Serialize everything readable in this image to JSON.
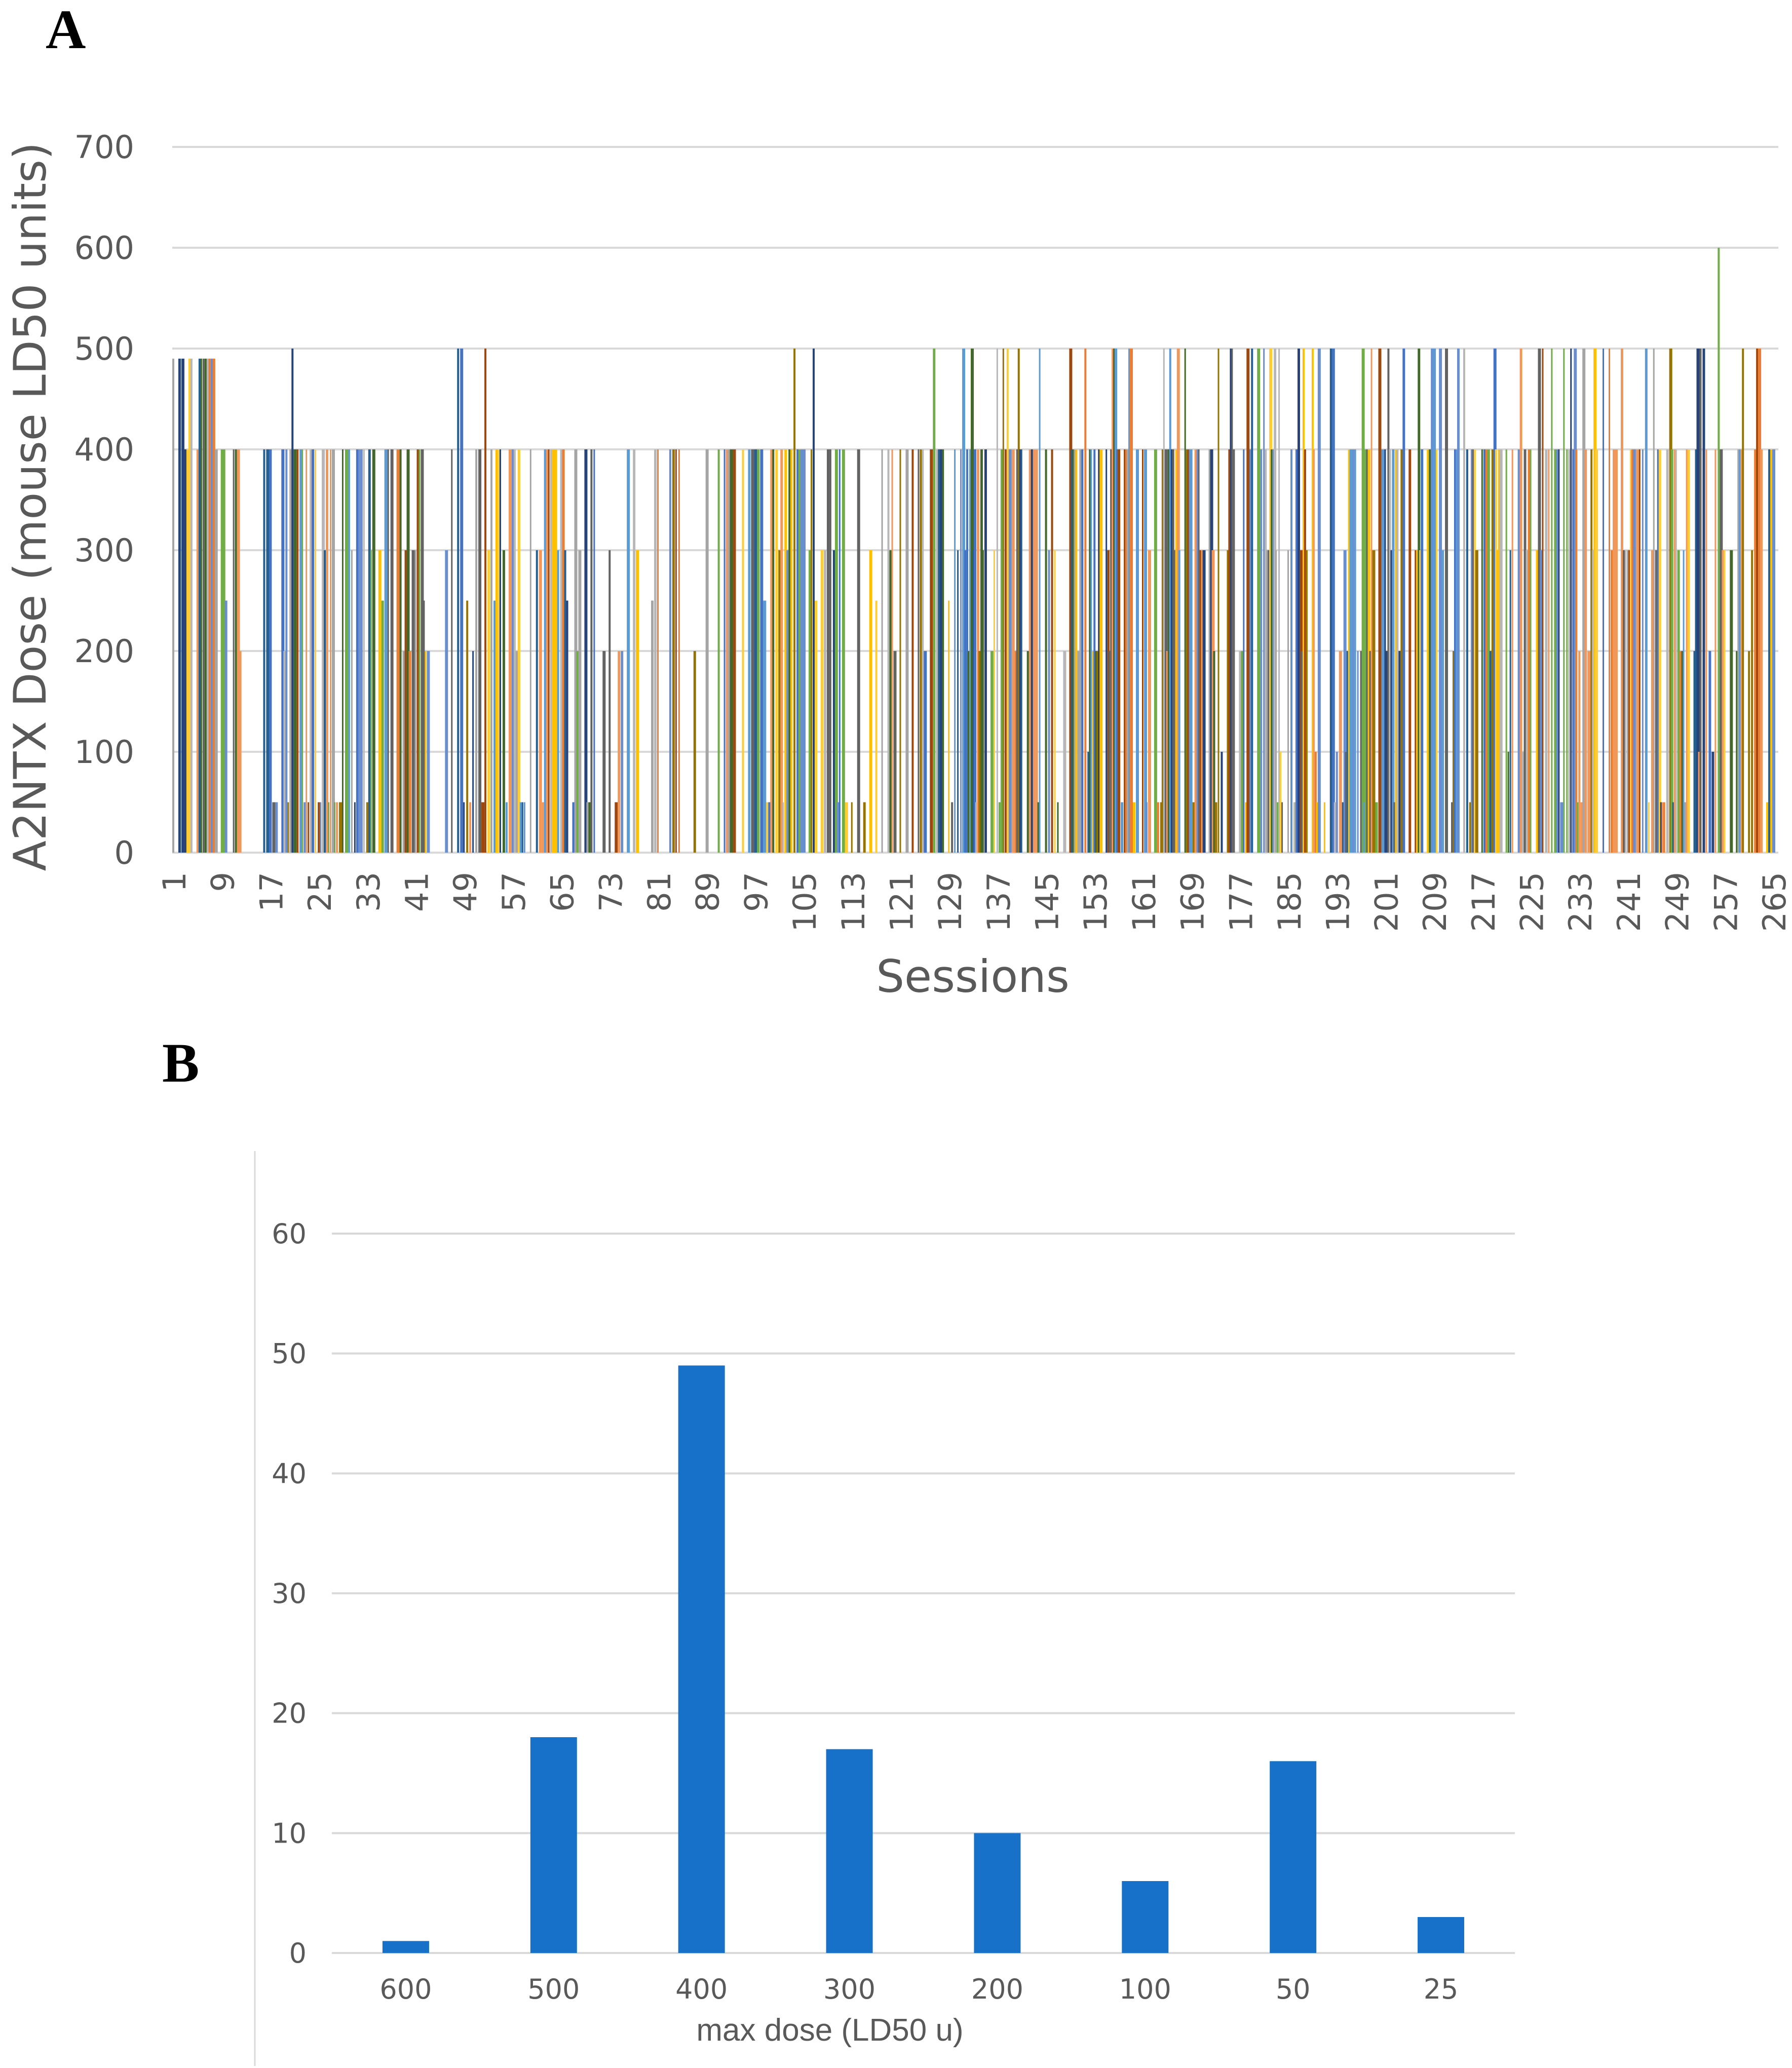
{
  "figure": {
    "panels": [
      "A",
      "B"
    ]
  },
  "chart_data": [
    {
      "panel": "A",
      "type": "bar",
      "title": "",
      "xlabel": "Sessions",
      "ylabel": "A2NTX Dose (mouse LD50 units)",
      "ylim": [
        0,
        700
      ],
      "yticks": [
        0,
        100,
        200,
        300,
        400,
        500,
        600,
        700
      ],
      "x_range": [
        1,
        265
      ],
      "xticks": [
        1,
        9,
        17,
        25,
        33,
        41,
        49,
        57,
        65,
        73,
        81,
        89,
        97,
        105,
        113,
        121,
        129,
        137,
        145,
        153,
        161,
        169,
        177,
        185,
        193,
        201,
        209,
        217,
        225,
        233,
        241,
        249,
        257,
        265
      ],
      "grid": true,
      "legend": "none",
      "palette": [
        "#4472c4",
        "#ed7d31",
        "#a5a5a5",
        "#ffc000",
        "#5b9bd5",
        "#70ad47",
        "#264478",
        "#9e480e",
        "#636363",
        "#997300",
        "#255e91",
        "#43682b",
        "#698ed0",
        "#f1975a",
        "#b7b7b7",
        "#ffcd33"
      ],
      "dose_levels": [
        600,
        500,
        490,
        450,
        400,
        350,
        300,
        250,
        200,
        175,
        150,
        100,
        90,
        75,
        50,
        25
      ],
      "description": "Per-patient A2NTX dose per injection session, sessions 1 to 265; doses range from 25 to 600 mouse LD50 units, most commonly 400 LD50 units"
    },
    {
      "panel": "B",
      "type": "bar",
      "title": "",
      "xlabel": "max dose (LD50 u)",
      "ylabel": "",
      "categories": [
        "600",
        "500",
        "400",
        "300",
        "200",
        "100",
        "50",
        "25"
      ],
      "values": [
        1,
        18,
        49,
        17,
        10,
        6,
        16,
        3
      ],
      "ylim": [
        0,
        60
      ],
      "yticks": [
        0,
        10,
        20,
        30,
        40,
        50,
        60
      ],
      "grid": true,
      "legend": "none",
      "bar_color": "#1771c8"
    }
  ]
}
